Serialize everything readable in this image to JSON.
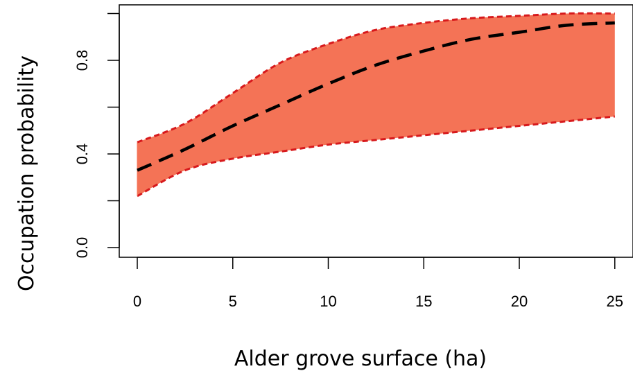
{
  "chart_data": {
    "type": "line",
    "title": "",
    "xlabel": "Alder grove surface (ha)",
    "ylabel": "Occupation probability",
    "xlim": [
      0,
      25
    ],
    "ylim": [
      0,
      1
    ],
    "x_ticks": [
      "0",
      "5",
      "10",
      "15",
      "20",
      "25"
    ],
    "x_tick_values": [
      0,
      5,
      10,
      15,
      20,
      25
    ],
    "y_ticks": [
      "0.0",
      "0.4",
      "0.8"
    ],
    "y_tick_values": [
      0.0,
      0.4,
      0.8
    ],
    "grid": false,
    "x": [
      0,
      2.5,
      5,
      7.5,
      10,
      12.5,
      15,
      17.5,
      20,
      22.5,
      25
    ],
    "series": [
      {
        "role": "estimate",
        "values": [
          0.33,
          0.42,
          0.52,
          0.61,
          0.7,
          0.78,
          0.84,
          0.89,
          0.92,
          0.95,
          0.96
        ]
      },
      {
        "role": "upper",
        "values": [
          0.45,
          0.53,
          0.66,
          0.79,
          0.87,
          0.93,
          0.96,
          0.98,
          0.99,
          1.0,
          1.0
        ]
      },
      {
        "role": "lower",
        "values": [
          0.22,
          0.33,
          0.38,
          0.41,
          0.44,
          0.46,
          0.48,
          0.5,
          0.52,
          0.54,
          0.56
        ]
      }
    ],
    "colors": {
      "ci_fill": "#F47356",
      "ci_border": "#D7191C",
      "estimate_line": "#000000",
      "axis": "#000000"
    }
  }
}
